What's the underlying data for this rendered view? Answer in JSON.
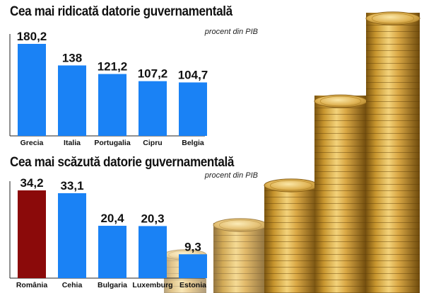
{
  "colors": {
    "bar": "#1a82f5",
    "highlight": "#8b0a0a",
    "axis": "#222222"
  },
  "chart_data": [
    {
      "type": "bar",
      "title": "Cea mai ridicată datorie guvernamentală",
      "subtitle": "procent din PIB",
      "categories": [
        "Grecia",
        "Italia",
        "Portugalia",
        "Cipru",
        "Belgia"
      ],
      "values": [
        180.2,
        138,
        121.2,
        107.2,
        104.7
      ],
      "value_labels": [
        "180,2",
        "138",
        "121,2",
        "107,2",
        "104,7"
      ],
      "highlight": [],
      "grid": false
    },
    {
      "type": "bar",
      "title": "Cea mai scăzută datorie guvernamentală",
      "subtitle": "procent din PIB",
      "categories": [
        "România",
        "Cehia",
        "Bulgaria",
        "Luxemburg",
        "Estonia"
      ],
      "values": [
        34.2,
        33.1,
        20.4,
        20.3,
        9.3
      ],
      "value_labels": [
        "34,2",
        "33,1",
        "20,4",
        "20,3",
        "9,3"
      ],
      "highlight": [
        "România"
      ],
      "grid": false
    }
  ]
}
